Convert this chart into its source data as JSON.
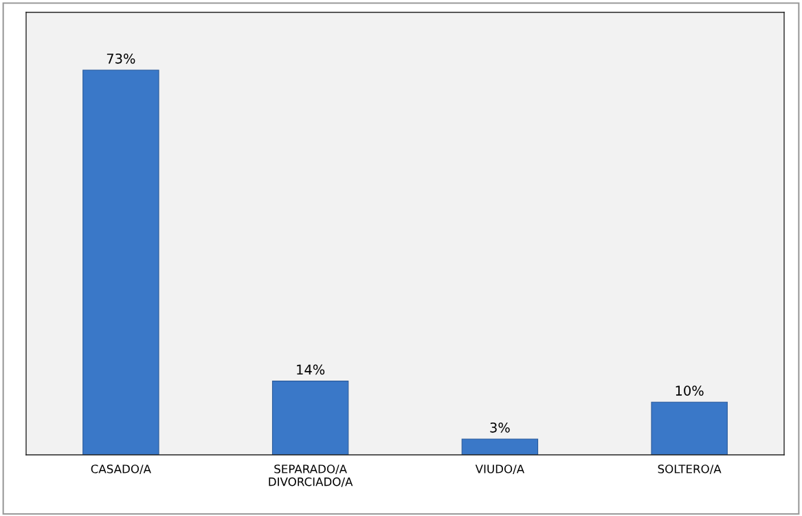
{
  "chart_data": {
    "type": "bar",
    "categories": [
      "CASADO/A",
      "SEPARADO/A\nDIVORCIADO/A",
      "VIUDO/A",
      "SOLTERO/A"
    ],
    "values": [
      73,
      14,
      3,
      10
    ],
    "value_labels": [
      "73%",
      "14%",
      "3%",
      "10%"
    ],
    "color": "#3a78c8",
    "grid": false,
    "legend": false
  }
}
